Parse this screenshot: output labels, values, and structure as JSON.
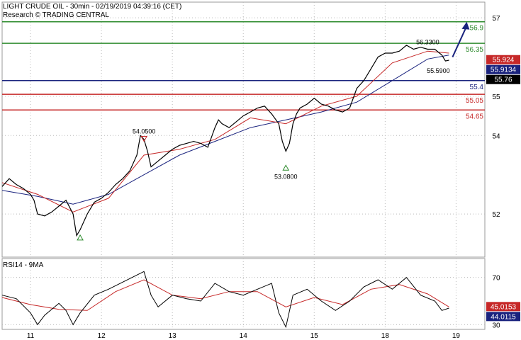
{
  "header": {
    "line1": "LIGHT CRUDE OIL - 30min - 02/19/2019 04:39:16 (CET)",
    "line2": "Research © TRADING CENTRAL"
  },
  "chart_data": [
    {
      "type": "line",
      "instrument": "LIGHT CRUDE OIL",
      "timeframe": "30min",
      "ylim": [
        50.9,
        57.4
      ],
      "y_ticks": [
        {
          "value": 57,
          "label": "57"
        },
        {
          "value": 55,
          "label": "55"
        },
        {
          "value": 54,
          "label": "54"
        },
        {
          "value": 52,
          "label": "52"
        }
      ],
      "x_ticks": [
        {
          "x": 0.4,
          "label": "11"
        },
        {
          "x": 1.4,
          "label": "12"
        },
        {
          "x": 2.4,
          "label": "13"
        },
        {
          "x": 3.4,
          "label": "14"
        },
        {
          "x": 4.4,
          "label": "15"
        },
        {
          "x": 5.4,
          "label": "18"
        },
        {
          "x": 6.4,
          "label": "19"
        }
      ],
      "x_range": [
        0,
        7.35
      ],
      "price_series": [
        [
          0.0,
          52.7
        ],
        [
          0.1,
          52.9
        ],
        [
          0.2,
          52.75
        ],
        [
          0.3,
          52.65
        ],
        [
          0.4,
          52.5
        ],
        [
          0.45,
          52.35
        ],
        [
          0.5,
          52.0
        ],
        [
          0.6,
          51.95
        ],
        [
          0.7,
          52.05
        ],
        [
          0.8,
          52.2
        ],
        [
          0.9,
          52.35
        ],
        [
          1.0,
          52.0
        ],
        [
          1.05,
          51.45
        ],
        [
          1.1,
          51.6
        ],
        [
          1.2,
          52.0
        ],
        [
          1.3,
          52.3
        ],
        [
          1.4,
          52.4
        ],
        [
          1.5,
          52.55
        ],
        [
          1.6,
          52.75
        ],
        [
          1.7,
          52.9
        ],
        [
          1.8,
          53.1
        ],
        [
          1.9,
          53.5
        ],
        [
          1.95,
          54.0
        ],
        [
          2.0,
          53.9
        ],
        [
          2.05,
          53.6
        ],
        [
          2.1,
          53.2
        ],
        [
          2.2,
          53.35
        ],
        [
          2.3,
          53.5
        ],
        [
          2.4,
          53.65
        ],
        [
          2.5,
          53.75
        ],
        [
          2.6,
          53.8
        ],
        [
          2.7,
          53.85
        ],
        [
          2.8,
          53.8
        ],
        [
          2.9,
          53.7
        ],
        [
          3.0,
          54.2
        ],
        [
          3.05,
          54.4
        ],
        [
          3.1,
          54.3
        ],
        [
          3.2,
          54.2
        ],
        [
          3.3,
          54.35
        ],
        [
          3.4,
          54.5
        ],
        [
          3.5,
          54.6
        ],
        [
          3.6,
          54.7
        ],
        [
          3.7,
          54.75
        ],
        [
          3.8,
          54.55
        ],
        [
          3.9,
          54.3
        ],
        [
          3.95,
          53.85
        ],
        [
          4.0,
          53.6
        ],
        [
          4.05,
          53.8
        ],
        [
          4.1,
          54.3
        ],
        [
          4.15,
          54.55
        ],
        [
          4.2,
          54.7
        ],
        [
          4.3,
          54.8
        ],
        [
          4.4,
          54.95
        ],
        [
          4.5,
          54.8
        ],
        [
          4.6,
          54.75
        ],
        [
          4.7,
          54.65
        ],
        [
          4.8,
          54.6
        ],
        [
          4.9,
          54.7
        ],
        [
          5.0,
          55.2
        ],
        [
          5.1,
          55.4
        ],
        [
          5.2,
          55.7
        ],
        [
          5.3,
          56.0
        ],
        [
          5.4,
          56.1
        ],
        [
          5.5,
          56.1
        ],
        [
          5.6,
          56.15
        ],
        [
          5.7,
          56.3
        ],
        [
          5.8,
          56.2
        ],
        [
          5.9,
          56.25
        ],
        [
          6.0,
          56.2
        ],
        [
          6.1,
          56.2
        ],
        [
          6.2,
          56.05
        ],
        [
          6.25,
          55.9
        ],
        [
          6.3,
          55.92
        ]
      ],
      "ma_fast_series": [
        [
          0.0,
          52.8
        ],
        [
          0.5,
          52.5
        ],
        [
          1.0,
          52.05
        ],
        [
          1.5,
          52.4
        ],
        [
          2.0,
          53.5
        ],
        [
          2.5,
          53.65
        ],
        [
          3.0,
          53.9
        ],
        [
          3.5,
          54.45
        ],
        [
          4.0,
          54.3
        ],
        [
          4.5,
          54.75
        ],
        [
          5.0,
          55.0
        ],
        [
          5.5,
          55.85
        ],
        [
          6.0,
          56.15
        ],
        [
          6.3,
          56.1
        ]
      ],
      "ma_slow_series": [
        [
          0.0,
          52.6
        ],
        [
          0.5,
          52.45
        ],
        [
          1.0,
          52.25
        ],
        [
          1.5,
          52.5
        ],
        [
          2.0,
          53.0
        ],
        [
          2.5,
          53.5
        ],
        [
          3.0,
          53.85
        ],
        [
          3.5,
          54.2
        ],
        [
          4.0,
          54.4
        ],
        [
          4.5,
          54.6
        ],
        [
          5.0,
          54.85
        ],
        [
          5.5,
          55.4
        ],
        [
          6.0,
          55.95
        ],
        [
          6.3,
          56.05
        ]
      ],
      "horizontal_levels": [
        {
          "value": 56.9,
          "label": "56.9",
          "color": "#2e8b2e"
        },
        {
          "value": 56.35,
          "label": "56.35",
          "color": "#2e8b2e"
        },
        {
          "value": 55.4,
          "label": "55.4",
          "color": "#1a237e"
        },
        {
          "value": 55.05,
          "label": "55.05",
          "color": "#c62828"
        },
        {
          "value": 54.65,
          "label": "54.65",
          "color": "#c62828"
        }
      ],
      "price_badges": [
        {
          "value": 55.924,
          "label": "55.924",
          "bg": "#c62828",
          "fg": "#ffffff"
        },
        {
          "value": 55.9134,
          "label": "55.9134",
          "bg": "#1a237e",
          "fg": "#ffffff"
        },
        {
          "value": 55.76,
          "label": "55.76",
          "bg": "#000000",
          "fg": "#ffffff"
        }
      ],
      "annotations": [
        {
          "x": 6.0,
          "y": 56.33,
          "label": "56.3300",
          "marker": "none"
        },
        {
          "x": 6.15,
          "y": 55.59,
          "label": "55.5900",
          "marker": "none"
        },
        {
          "x": 2.0,
          "y": 54.05,
          "label": "54.0500",
          "marker": "triangle-down"
        },
        {
          "x": 4.0,
          "y": 53.08,
          "label": "53.0800",
          "marker": "triangle-up"
        },
        {
          "x": 1.1,
          "y": 51.3,
          "label": "",
          "marker": "triangle-up"
        }
      ],
      "arrow": {
        "from": [
          6.35,
          56.0
        ],
        "to": [
          6.55,
          56.9
        ]
      },
      "colors": {
        "price": "#000000",
        "ma_fast": "#c62828",
        "ma_slow": "#1a237e"
      }
    },
    {
      "type": "line",
      "title": "RSI14 - 9MA",
      "ylim": [
        26,
        86
      ],
      "y_ticks": [
        {
          "value": 70,
          "label": "70"
        },
        {
          "value": 30,
          "label": "30"
        }
      ],
      "rsi_series": [
        [
          0.0,
          55
        ],
        [
          0.2,
          52
        ],
        [
          0.4,
          40
        ],
        [
          0.5,
          30
        ],
        [
          0.6,
          38
        ],
        [
          0.8,
          48
        ],
        [
          0.9,
          42
        ],
        [
          1.0,
          30
        ],
        [
          1.1,
          40
        ],
        [
          1.3,
          55
        ],
        [
          1.5,
          60
        ],
        [
          1.7,
          66
        ],
        [
          1.9,
          72
        ],
        [
          2.0,
          75
        ],
        [
          2.1,
          55
        ],
        [
          2.2,
          45
        ],
        [
          2.4,
          55
        ],
        [
          2.6,
          52
        ],
        [
          2.8,
          50
        ],
        [
          3.0,
          65
        ],
        [
          3.2,
          58
        ],
        [
          3.4,
          55
        ],
        [
          3.6,
          60
        ],
        [
          3.8,
          65
        ],
        [
          3.9,
          40
        ],
        [
          4.0,
          28
        ],
        [
          4.1,
          55
        ],
        [
          4.3,
          60
        ],
        [
          4.5,
          50
        ],
        [
          4.7,
          42
        ],
        [
          4.9,
          50
        ],
        [
          5.1,
          62
        ],
        [
          5.3,
          68
        ],
        [
          5.5,
          60
        ],
        [
          5.7,
          70
        ],
        [
          5.9,
          55
        ],
        [
          6.1,
          50
        ],
        [
          6.2,
          42
        ],
        [
          6.3,
          44
        ]
      ],
      "rsi_ma_series": [
        [
          0.0,
          53
        ],
        [
          0.4,
          47
        ],
        [
          0.8,
          43
        ],
        [
          1.2,
          42
        ],
        [
          1.6,
          58
        ],
        [
          2.0,
          68
        ],
        [
          2.4,
          55
        ],
        [
          2.8,
          52
        ],
        [
          3.2,
          58
        ],
        [
          3.6,
          58
        ],
        [
          4.0,
          45
        ],
        [
          4.4,
          53
        ],
        [
          4.8,
          47
        ],
        [
          5.2,
          60
        ],
        [
          5.6,
          64
        ],
        [
          6.0,
          56
        ],
        [
          6.3,
          45
        ]
      ],
      "price_badges": [
        {
          "value": 45.0153,
          "label": "45.0153",
          "bg": "#c62828",
          "fg": "#ffffff"
        },
        {
          "value": 44.0115,
          "label": "44.0115",
          "bg": "#1a237e",
          "fg": "#ffffff"
        }
      ],
      "colors": {
        "rsi": "#000000",
        "rsi_ma": "#c62828"
      }
    }
  ]
}
